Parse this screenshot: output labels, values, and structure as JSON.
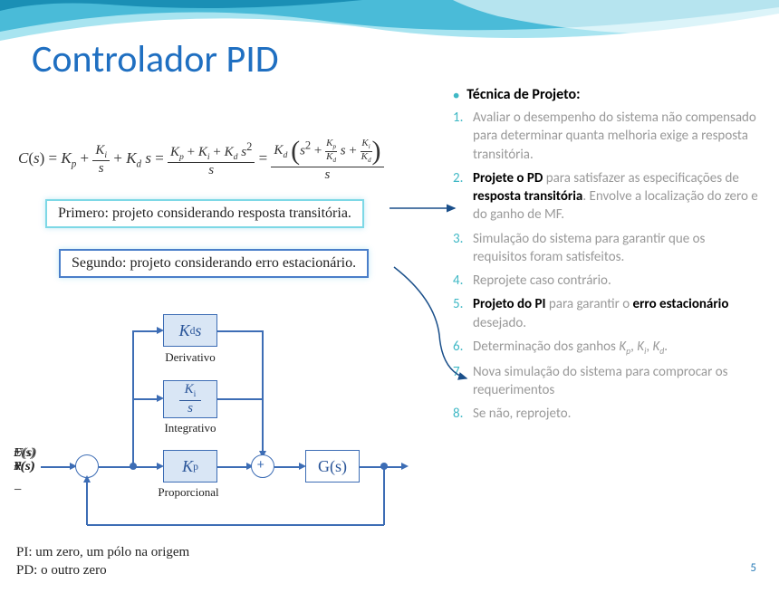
{
  "title": "Controlador PID",
  "page_number": "5",
  "wave_colors": {
    "dark": "#1a8fb5",
    "mid": "#4abbd8",
    "light": "#a8e4f0",
    "pale": "#d9f2f8"
  },
  "equation": {
    "lhs": "C(s)",
    "kp": "K",
    "ki_num": "K",
    "ki_den": "s",
    "kds": "K",
    "mid_num": "K",
    "mid_den": "s",
    "rhs_kd": "K",
    "rhs_den": "s"
  },
  "callout1": "Primero: projeto considerando resposta transitória.",
  "callout2": "Segundo: projeto considerando erro estacionário.",
  "tech_heading": "Técnica de Projeto:",
  "steps": [
    {
      "pre": "",
      "bold": "",
      "rest": "Avaliar o desempenho do sistema não compensado para determinar quanta melhoria exige a resposta transitória.",
      "hl": false
    },
    {
      "pre": "",
      "bold": "Projete o PD",
      "rest": " para satisfazer as especificações de ",
      "bold2": "resposta transitória",
      "rest2": ". Envolve a localização do zero e do ganho de MF.",
      "hl": true
    },
    {
      "pre": "",
      "bold": "",
      "rest": "Simulação do sistema para garantir que os requisitos foram satisfeitos.",
      "hl": false
    },
    {
      "pre": "",
      "bold": "",
      "rest": "Reprojete caso contrário.",
      "hl": false
    },
    {
      "pre": "",
      "bold": "Projeto do PI",
      "rest": " para garantir o ",
      "bold2": "erro estacionário",
      "rest2": " desejado.",
      "hl": true
    },
    {
      "pre": "Determinação dos ganhos ",
      "bold": "",
      "rest": "",
      "hl": false,
      "gains": true
    },
    {
      "pre": "",
      "bold": "",
      "rest": "Nova simulação do sistema para comprocar os requerimentos",
      "hl": false
    },
    {
      "pre": "",
      "bold": "",
      "rest": "Se não, reprojeto.",
      "hl": false
    }
  ],
  "diagram": {
    "kds": "K",
    "kds_sub": "d",
    "kds_s": "s",
    "deriv": "Derivativo",
    "ki": "K",
    "ki_sub": "i",
    "ki_s": "s",
    "integ": "Integrativo",
    "kp": "K",
    "kp_sub": "p",
    "prop": "Proporcional",
    "gs": "G(s)",
    "rs": "R(s)",
    "es": "E(s)",
    "us": "U(s)",
    "ys": "Y(s)",
    "block_fill": "#d9e6f5",
    "block_border": "#3d6db5",
    "text_color": "#2a5599"
  },
  "notes": {
    "l1": "PI: um zero, um pólo na origem",
    "l2": "PD: o outro zero"
  }
}
